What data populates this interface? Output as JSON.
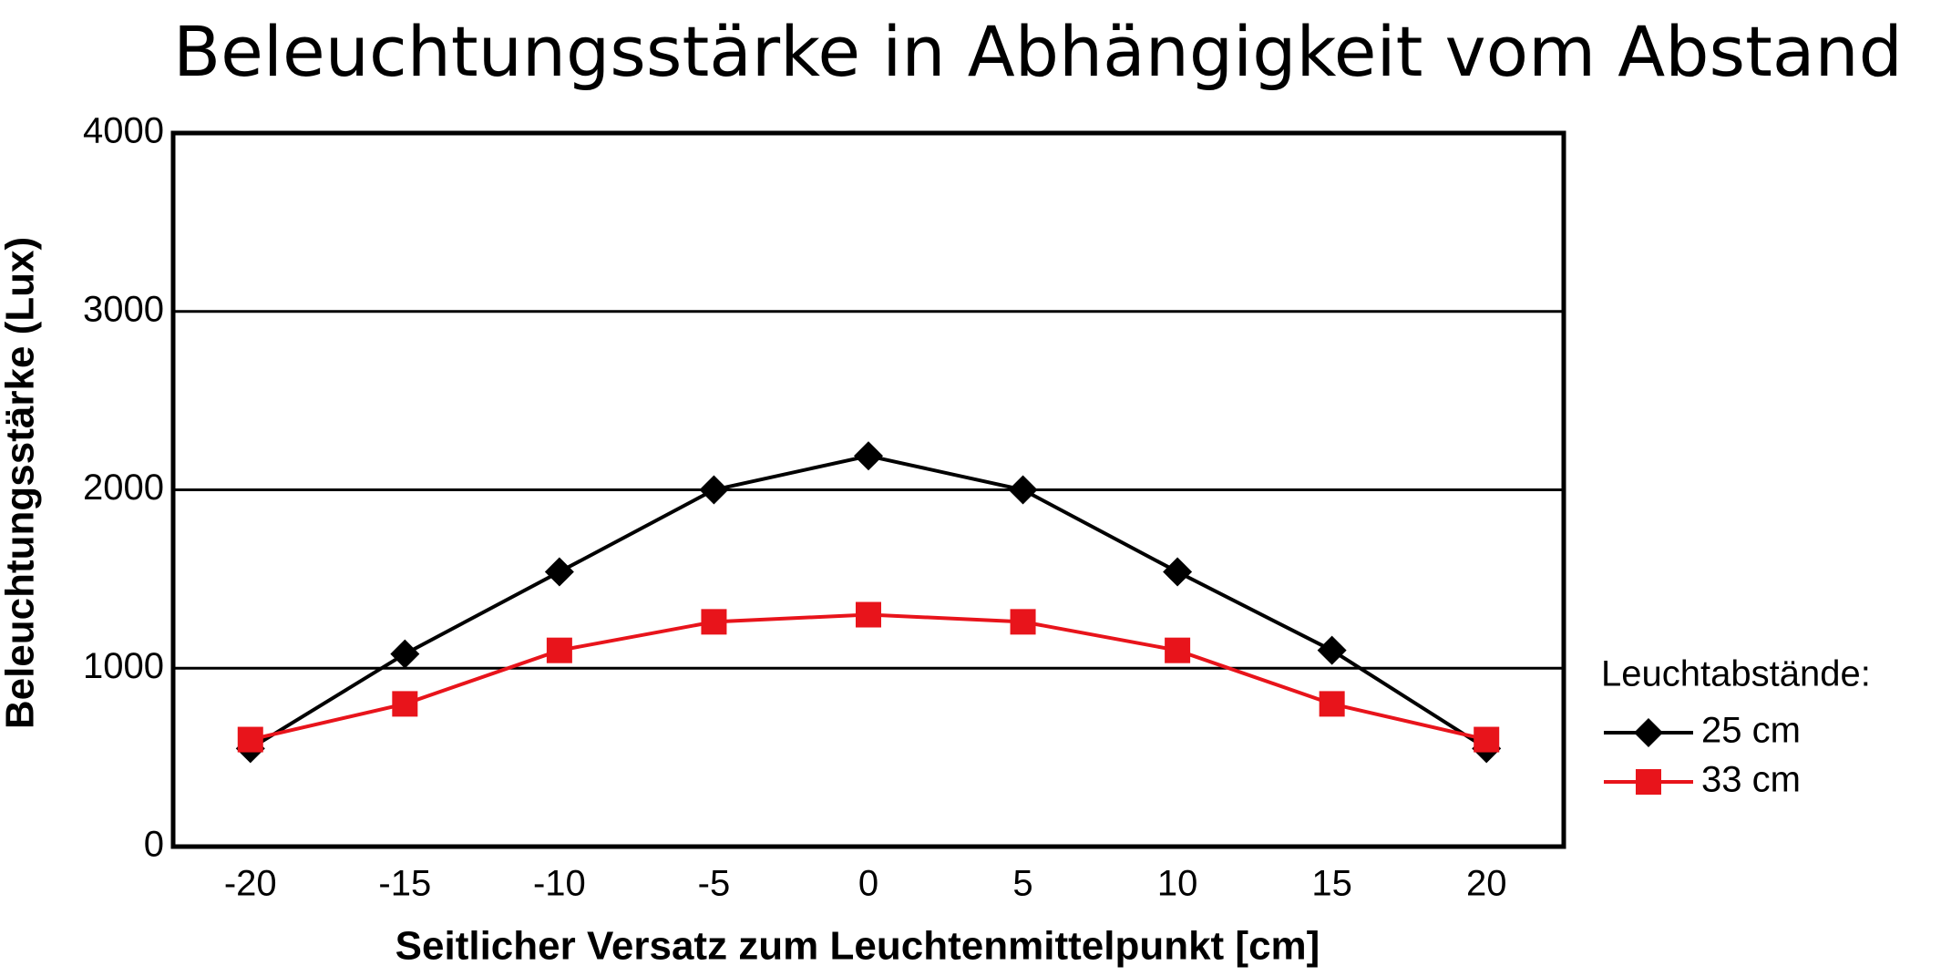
{
  "chart_data": {
    "type": "line",
    "title": "Beleuchtungsstärke in Abhängigkeit vom Abstand",
    "x_label": "Seitlicher Versatz zum Leuchtenmittelpunkt [cm]",
    "y_label": "Beleuchtungsstärke (Lux)",
    "legend_title": "Leuchtabstände:",
    "categories": [
      "-20",
      "-15",
      "-10",
      "-5",
      "0",
      "5",
      "10",
      "15",
      "20"
    ],
    "series": [
      {
        "name": "25 cm",
        "color": "#000000",
        "marker": "diamond",
        "values": [
          550,
          1080,
          1540,
          2000,
          2190,
          2000,
          1540,
          1100,
          550
        ]
      },
      {
        "name": "33 cm",
        "color": "#e8141b",
        "marker": "square",
        "values": [
          600,
          800,
          1100,
          1260,
          1300,
          1260,
          1100,
          800,
          600
        ]
      }
    ],
    "ylim": [
      0,
      4000
    ],
    "yticks": [
      0,
      1000,
      2000,
      3000,
      4000
    ],
    "grid": true,
    "legend": "right"
  }
}
